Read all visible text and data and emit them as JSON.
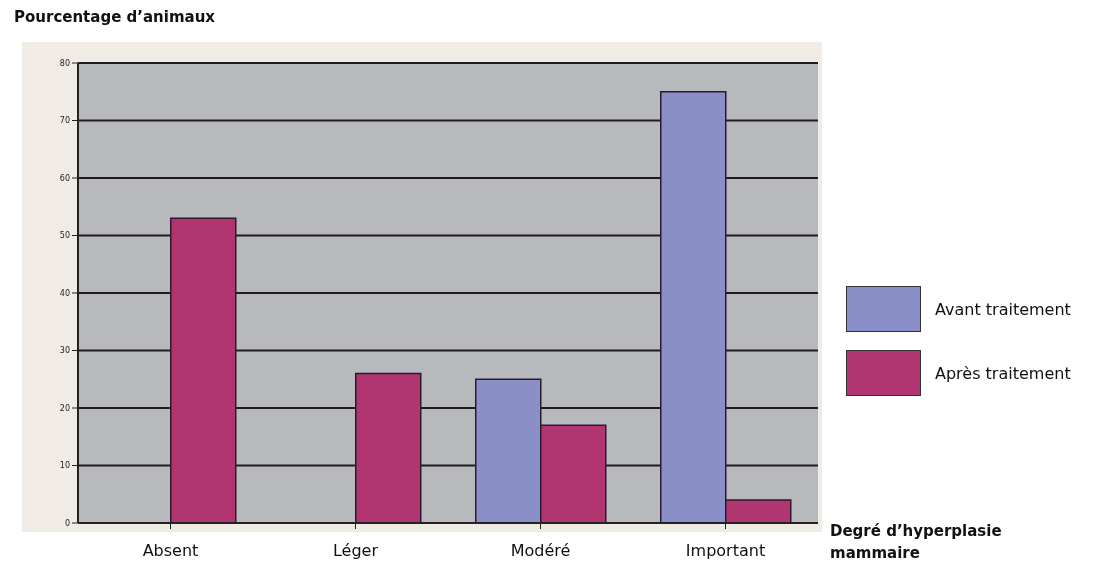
{
  "chart_data": {
    "type": "bar",
    "ylabel": "Pourcentage d’animaux",
    "xlabel": "Degré d’hyperplasie mammaire",
    "categories": [
      "Absent",
      "Léger",
      "Modéré",
      "Important"
    ],
    "series": [
      {
        "name": "Avant traitement",
        "color": "#8b8fc8",
        "values": [
          null,
          null,
          25,
          75
        ]
      },
      {
        "name": "Après traitement",
        "color": "#b03570",
        "values": [
          53,
          26,
          17,
          4
        ]
      }
    ],
    "ylim": [
      0,
      80
    ],
    "yticks": [
      0,
      10,
      20,
      30,
      40,
      50,
      60,
      70,
      80
    ],
    "grid": "y",
    "legend": "right"
  }
}
